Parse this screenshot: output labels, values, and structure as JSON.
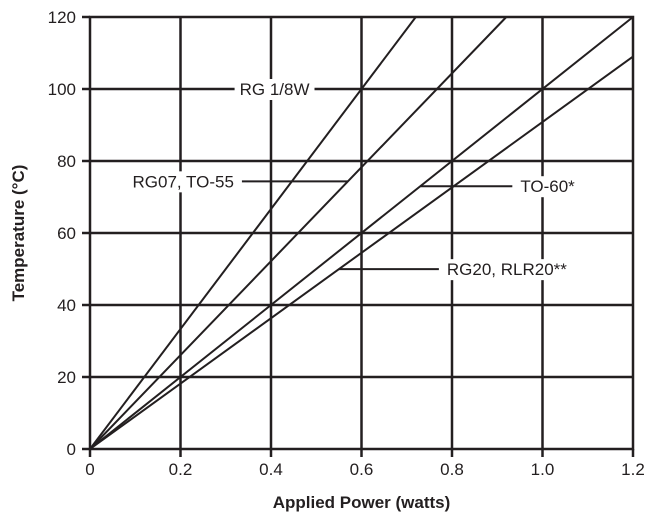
{
  "chart_data": {
    "type": "line",
    "title": "",
    "xlabel": "Applied Power (watts)",
    "ylabel": "Temperature (°C)",
    "xlim": [
      0,
      1.2
    ],
    "ylim": [
      0,
      120
    ],
    "x_ticks": [
      "0",
      "0.2",
      "0.4",
      "0.6",
      "0.8",
      "1.0",
      "1.2"
    ],
    "y_ticks": [
      "0",
      "20",
      "40",
      "60",
      "80",
      "100",
      "120"
    ],
    "grid": true,
    "series": [
      {
        "name": "RG 1/8W",
        "x": [
          0,
          0.72
        ],
        "y": [
          0,
          120
        ]
      },
      {
        "name": "RG07, TO-55",
        "x": [
          0,
          0.92
        ],
        "y": [
          0,
          120
        ]
      },
      {
        "name": "TO-60*",
        "x": [
          0,
          1.2
        ],
        "y": [
          0,
          120
        ]
      },
      {
        "name": "RG20, RLR20**",
        "x": [
          0,
          1.2
        ],
        "y": [
          0,
          109
        ]
      }
    ]
  }
}
